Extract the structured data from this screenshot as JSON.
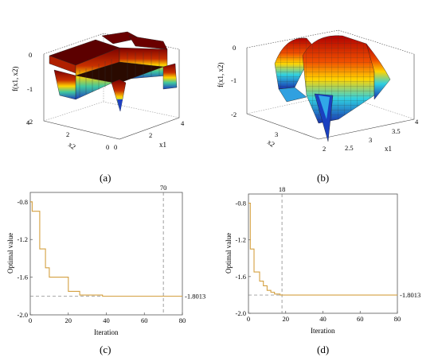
{
  "panels": {
    "a": {
      "label": "(a)"
    },
    "b": {
      "label": "(b)"
    },
    "c": {
      "label": "(c)"
    },
    "d": {
      "label": "(d)"
    }
  },
  "surface_a": {
    "zlabel": "f(x1, x2)",
    "x1label": "x1",
    "x2label": "x2",
    "z_ticks": [
      "0",
      "-1",
      "-2"
    ],
    "x1_ticks": [
      "0",
      "2",
      "4"
    ],
    "x2_ticks": [
      "4",
      "2",
      "0"
    ],
    "colors": {
      "high": "#8b0000",
      "mid": "#ffd400",
      "low": "#1f3fbf"
    }
  },
  "surface_b": {
    "zlabel": "f(x1, x2)",
    "x1label": "x1",
    "x2label": "x2",
    "z_ticks": [
      "0",
      "-1",
      "-2"
    ],
    "x1_ticks": [
      "2.5",
      "3",
      "3.5",
      "4"
    ],
    "x2_ticks": [
      "3",
      "2"
    ],
    "colors": {
      "high": "#b00000",
      "mid": "#ffd400",
      "low": "#2050d0"
    }
  },
  "chart_data": [
    {
      "type": "line",
      "panel": "c",
      "xlabel": "Iteration",
      "ylabel": "Optimal value",
      "xlim": [
        0,
        80
      ],
      "ylim": [
        -2.0,
        -0.7
      ],
      "x_ticks": [
        0,
        20,
        40,
        60,
        80
      ],
      "y_ticks": [
        -0.8,
        -1.2,
        -1.6,
        -2.0
      ],
      "y_tick_labels": [
        "-0.8",
        "-1.2",
        "-1.6",
        "-2.0"
      ],
      "series": [
        {
          "color": "#d4a040",
          "x": [
            0,
            1,
            1,
            5,
            5,
            8,
            8,
            10,
            10,
            20,
            20,
            26,
            26,
            38,
            38,
            80
          ],
          "y": [
            -0.8,
            -0.8,
            -0.9,
            -0.9,
            -1.3,
            -1.3,
            -1.5,
            -1.5,
            -1.6,
            -1.6,
            -1.75,
            -1.75,
            -1.79,
            -1.79,
            -1.8013,
            -1.8013
          ]
        }
      ],
      "optimum": {
        "value": -1.8013,
        "label": "-1.8013"
      },
      "marker_iteration": {
        "value": 70,
        "label": "70"
      }
    },
    {
      "type": "line",
      "panel": "d",
      "xlabel": "Iteration",
      "ylabel": "Optimal value",
      "xlim": [
        0,
        80
      ],
      "ylim": [
        -2.0,
        -0.7
      ],
      "x_ticks": [
        0,
        20,
        40,
        60,
        80
      ],
      "y_ticks": [
        -0.8,
        -1.2,
        -1.6,
        -2.0
      ],
      "y_tick_labels": [
        "-0.8",
        "-1.2",
        "-1.6",
        "-2.0"
      ],
      "series": [
        {
          "color": "#d4a040",
          "x": [
            0,
            1,
            1,
            3,
            3,
            6,
            6,
            8,
            8,
            10,
            10,
            12,
            12,
            14,
            14,
            17,
            17,
            80
          ],
          "y": [
            -0.8,
            -0.8,
            -1.3,
            -1.3,
            -1.55,
            -1.55,
            -1.65,
            -1.65,
            -1.7,
            -1.7,
            -1.75,
            -1.75,
            -1.77,
            -1.77,
            -1.79,
            -1.79,
            -1.8013,
            -1.8013
          ]
        }
      ],
      "optimum": {
        "value": -1.8013,
        "label": "-1.8013"
      },
      "marker_iteration": {
        "value": 18,
        "label": "18"
      }
    }
  ]
}
